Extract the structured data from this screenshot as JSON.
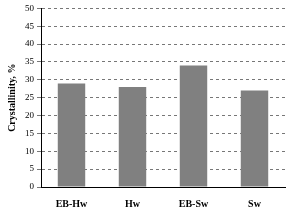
{
  "chart_data": {
    "type": "bar",
    "y_label": "Crystallinity, %",
    "categories": [
      "EB-Hw",
      "Hw",
      "EB-Sw",
      "Sw"
    ],
    "values": [
      29,
      28,
      34,
      27
    ],
    "color": "#808080",
    "ylim": [
      0,
      50
    ],
    "yticks": [
      0,
      5,
      10,
      15,
      20,
      25,
      30,
      35,
      40,
      45,
      50
    ],
    "grid": true
  }
}
